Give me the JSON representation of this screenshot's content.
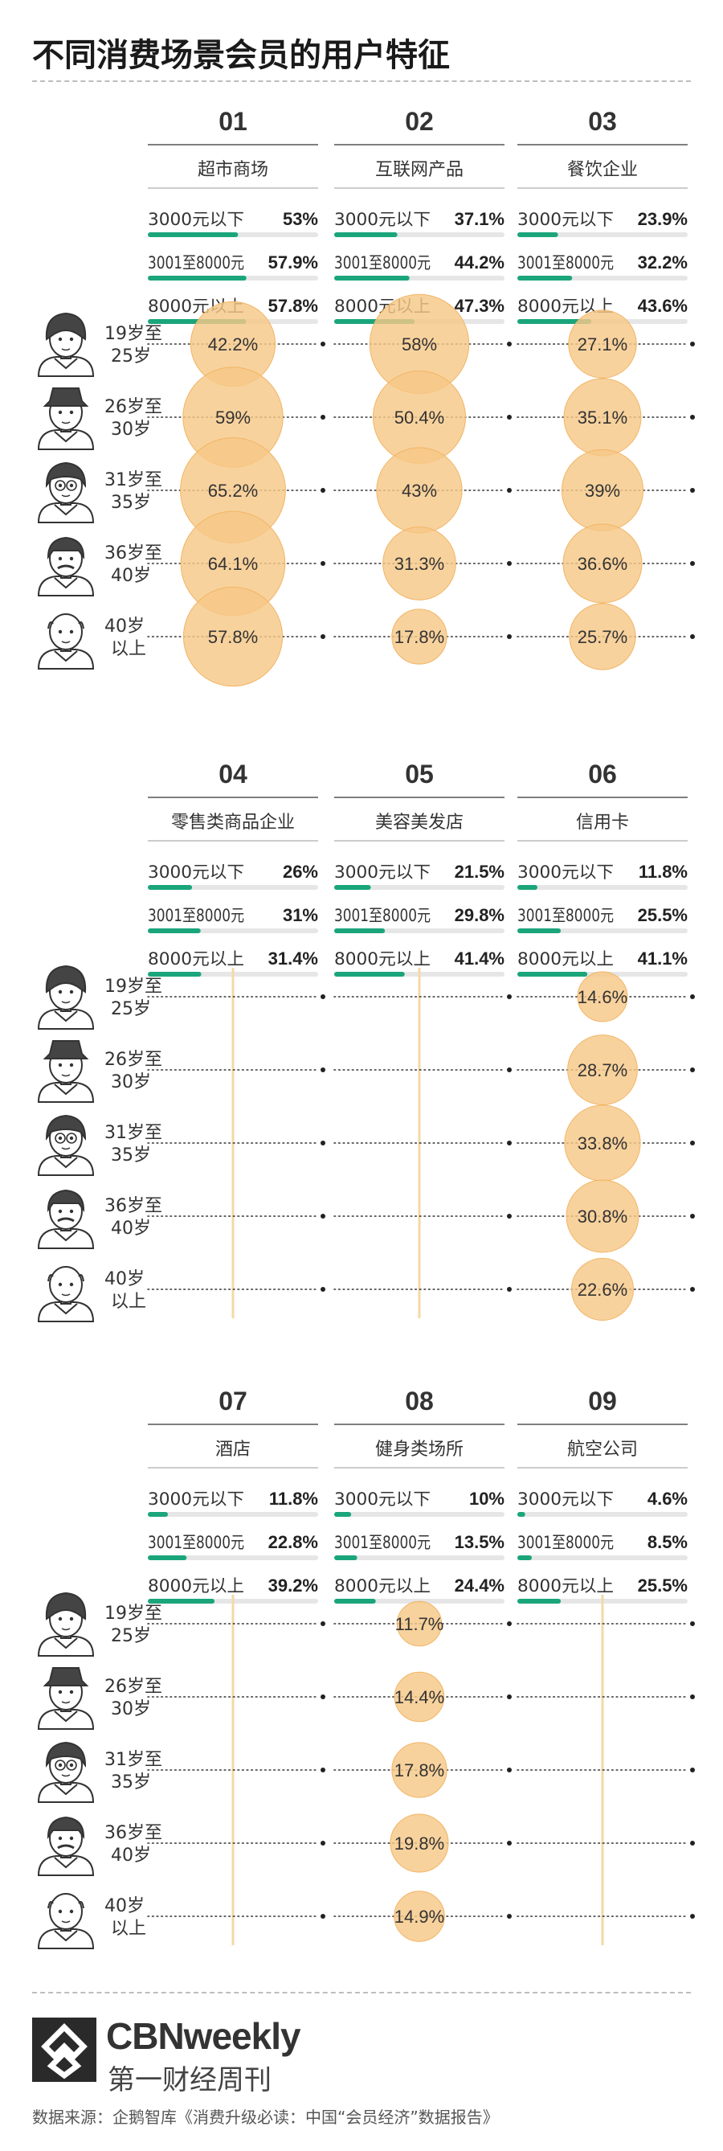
{
  "title": "不同消费场景会员的用户特征",
  "colors": {
    "bar": "#1aa57b",
    "track": "#e6e6e6",
    "bubble": "#f7c888",
    "bubble_stroke": "#f1b565",
    "guide": "#f4d9a6",
    "dots": "#333333"
  },
  "chart_data": {
    "type": "table",
    "income_groups": [
      "3000元以下",
      "3001至8000元",
      "8000元以上"
    ],
    "age_groups": [
      {
        "line1": "19岁至",
        "line2": "25岁"
      },
      {
        "line1": "26岁至",
        "line2": "30岁"
      },
      {
        "line1": "31岁至",
        "line2": "35岁"
      },
      {
        "line1": "36岁至",
        "line2": "40岁"
      },
      {
        "line1": "40岁",
        "line2": "以上"
      }
    ],
    "sections": [
      {
        "categories": [
          {
            "number": "01",
            "name": "超市商场",
            "income": [
              53.0,
              57.9,
              57.8
            ],
            "income_labels": [
              "53%",
              "57.9%",
              "57.8%"
            ],
            "age": [
              42.2,
              59.0,
              65.2,
              64.1,
              57.8
            ],
            "age_labels": [
              "42.2%",
              "59%",
              "65.2%",
              "64.1%",
              "57.8%"
            ]
          },
          {
            "number": "02",
            "name": "互联网产品",
            "income": [
              37.1,
              44.2,
              47.3
            ],
            "income_labels": [
              "37.1%",
              "44.2%",
              "47.3%"
            ],
            "age": [
              58.0,
              50.4,
              43.0,
              31.3,
              17.8
            ],
            "age_labels": [
              "58%",
              "50.4%",
              "43%",
              "31.3%",
              "17.8%"
            ]
          },
          {
            "number": "03",
            "name": "餐饮企业",
            "income": [
              23.9,
              32.2,
              43.6
            ],
            "income_labels": [
              "23.9%",
              "32.2%",
              "43.6%"
            ],
            "age": [
              27.1,
              35.1,
              39.0,
              36.6,
              25.7
            ],
            "age_labels": [
              "27.1%",
              "35.1%",
              "39%",
              "36.6%",
              "25.7%"
            ]
          }
        ]
      },
      {
        "categories": [
          {
            "number": "04",
            "name": "零售类商品企业",
            "income": [
              26.0,
              31.0,
              31.4
            ],
            "income_labels": [
              "26%",
              "31%",
              "31.4%"
            ],
            "age": [],
            "age_labels": []
          },
          {
            "number": "05",
            "name": "美容美发店",
            "income": [
              21.5,
              29.8,
              41.4
            ],
            "income_labels": [
              "21.5%",
              "29.8%",
              "41.4%"
            ],
            "age": [],
            "age_labels": []
          },
          {
            "number": "06",
            "name": "信用卡",
            "income": [
              11.8,
              25.5,
              41.1
            ],
            "income_labels": [
              "11.8%",
              "25.5%",
              "41.1%"
            ],
            "age": [
              14.6,
              28.7,
              33.8,
              30.8,
              22.6
            ],
            "age_labels": [
              "14.6%",
              "28.7%",
              "33.8%",
              "30.8%",
              "22.6%"
            ]
          }
        ]
      },
      {
        "categories": [
          {
            "number": "07",
            "name": "酒店",
            "income": [
              11.8,
              22.8,
              39.2
            ],
            "income_labels": [
              "11.8%",
              "22.8%",
              "39.2%"
            ],
            "age": [],
            "age_labels": []
          },
          {
            "number": "08",
            "name": "健身类场所",
            "income": [
              10.0,
              13.5,
              24.4
            ],
            "income_labels": [
              "10%",
              "13.5%",
              "24.4%"
            ],
            "age": [
              11.7,
              14.4,
              17.8,
              19.8,
              14.9
            ],
            "age_labels": [
              "11.7%",
              "14.4%",
              "17.8%",
              "19.8%",
              "14.9%"
            ]
          },
          {
            "number": "09",
            "name": "航空公司",
            "income": [
              4.6,
              8.5,
              25.5
            ],
            "income_labels": [
              "4.6%",
              "8.5%",
              "25.5%"
            ],
            "age": [],
            "age_labels": []
          }
        ]
      }
    ]
  },
  "footer": {
    "brand": "CBNweekly",
    "brand_sub": "第一财经周刊",
    "source": "数据来源：企鹅智库《消费升级必读：中国“会员经济”数据报告》"
  }
}
